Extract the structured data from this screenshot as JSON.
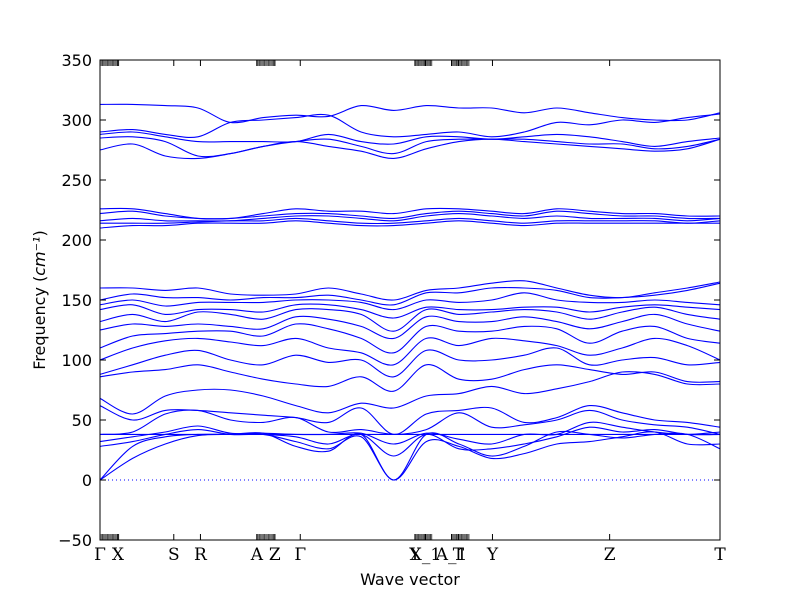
{
  "chart_data": {
    "type": "line",
    "title": "",
    "xlabel": "Wave vector",
    "ylabel": "Frequency",
    "ylabel_unit": "cm⁻¹",
    "ylim": [
      -50,
      350
    ],
    "yticks": [
      -50,
      0,
      50,
      100,
      150,
      200,
      250,
      300,
      350
    ],
    "grid": false,
    "legend": "none",
    "line_color": "#0000ff",
    "zero_line_color": "#0000ff",
    "xlim": [
      0,
      1
    ],
    "kpoints": [
      {
        "label": "Γ",
        "x": 0.0
      },
      {
        "label": "X",
        "x": 0.029
      },
      {
        "label": "S",
        "x": 0.119
      },
      {
        "label": "R",
        "x": 0.162
      },
      {
        "label": "A",
        "x": 0.253
      },
      {
        "label": "Z",
        "x": 0.282
      },
      {
        "label": "Γ",
        "x": 0.323
      },
      {
        "label": "Y",
        "x": 0.508
      },
      {
        "label": "X_1",
        "x": 0.525
      },
      {
        "label": "A_1",
        "x": 0.567
      },
      {
        "label": "T",
        "x": 0.578
      },
      {
        "label": "Y",
        "x": 0.633
      },
      {
        "label": "Z",
        "x": 0.822
      },
      {
        "label": "T",
        "x": 1.0
      }
    ],
    "kpoint_dense_regions": [
      [
        0.0,
        0.03
      ],
      [
        0.253,
        0.282
      ],
      [
        0.508,
        0.535
      ],
      [
        0.567,
        0.595
      ]
    ],
    "series": [
      {
        "values": [
          0,
          28,
          36,
          38,
          38,
          39,
          28,
          24,
          38,
          0,
          38,
          30,
          20,
          28,
          40,
          38,
          35,
          38,
          38,
          26
        ]
      },
      {
        "values": [
          0,
          18,
          30,
          37,
          38,
          38,
          32,
          26,
          36,
          0,
          32,
          28,
          18,
          22,
          30,
          32,
          36,
          40,
          30,
          30
        ]
      },
      {
        "values": [
          28,
          32,
          38,
          42,
          38,
          38,
          36,
          30,
          38,
          20,
          38,
          26,
          26,
          30,
          36,
          44,
          40,
          42,
          38,
          38
        ]
      },
      {
        "values": [
          32,
          36,
          40,
          45,
          39,
          39,
          38,
          38,
          39,
          30,
          39,
          34,
          30,
          38,
          38,
          48,
          44,
          40,
          38,
          40
        ]
      },
      {
        "values": [
          38,
          38,
          38,
          38,
          38,
          38,
          38,
          38,
          38,
          38,
          38,
          38,
          38,
          38,
          38,
          38,
          38,
          38,
          38,
          38
        ]
      },
      {
        "values": [
          38,
          40,
          55,
          58,
          50,
          48,
          52,
          40,
          42,
          38,
          42,
          56,
          44,
          46,
          50,
          58,
          50,
          46,
          44,
          38
        ]
      },
      {
        "values": [
          62,
          50,
          58,
          58,
          56,
          54,
          52,
          48,
          60,
          38,
          55,
          58,
          60,
          48,
          52,
          62,
          56,
          50,
          48,
          44
        ]
      },
      {
        "values": [
          68,
          55,
          70,
          75,
          75,
          70,
          62,
          56,
          64,
          60,
          70,
          72,
          78,
          72,
          76,
          82,
          90,
          88,
          80,
          80
        ]
      },
      {
        "values": [
          86,
          90,
          92,
          96,
          90,
          84,
          80,
          78,
          86,
          74,
          96,
          84,
          84,
          92,
          96,
          92,
          88,
          90,
          82,
          82
        ]
      },
      {
        "values": [
          88,
          96,
          104,
          108,
          100,
          96,
          104,
          98,
          100,
          86,
          108,
          100,
          100,
          104,
          110,
          96,
          100,
          102,
          96,
          98
        ]
      },
      {
        "values": [
          100,
          110,
          116,
          118,
          115,
          112,
          118,
          110,
          106,
          96,
          118,
          112,
          118,
          116,
          112,
          104,
          110,
          118,
          112,
          100
        ]
      },
      {
        "values": [
          110,
          120,
          122,
          124,
          124,
          120,
          130,
          126,
          118,
          106,
          128,
          124,
          124,
          128,
          126,
          114,
          124,
          128,
          118,
          114
        ]
      },
      {
        "values": [
          125,
          130,
          128,
          130,
          128,
          126,
          136,
          134,
          128,
          118,
          136,
          132,
          132,
          136,
          132,
          126,
          132,
          138,
          130,
          124
        ]
      },
      {
        "values": [
          132,
          138,
          132,
          140,
          138,
          134,
          142,
          142,
          138,
          124,
          142,
          138,
          140,
          142,
          140,
          134,
          140,
          144,
          138,
          134
        ]
      },
      {
        "values": [
          142,
          146,
          138,
          142,
          142,
          140,
          146,
          146,
          142,
          135,
          144,
          142,
          142,
          144,
          144,
          140,
          144,
          146,
          144,
          142
        ]
      },
      {
        "values": [
          146,
          150,
          145,
          148,
          148,
          148,
          150,
          150,
          148,
          142,
          150,
          148,
          150,
          156,
          150,
          148,
          148,
          150,
          148,
          146
        ]
      },
      {
        "values": [
          150,
          155,
          152,
          152,
          150,
          152,
          152,
          154,
          150,
          146,
          156,
          156,
          160,
          160,
          158,
          152,
          152,
          154,
          158,
          164
        ]
      },
      {
        "values": [
          160,
          160,
          158,
          160,
          155,
          154,
          155,
          160,
          155,
          150,
          158,
          160,
          164,
          166,
          160,
          154,
          152,
          156,
          160,
          165
        ]
      },
      {
        "values": [
          210,
          212,
          212,
          214,
          214,
          214,
          216,
          214,
          212,
          212,
          214,
          216,
          214,
          212,
          214,
          214,
          214,
          214,
          214,
          214
        ]
      },
      {
        "values": [
          214,
          214,
          214,
          215,
          216,
          216,
          218,
          216,
          214,
          214,
          216,
          218,
          216,
          214,
          216,
          216,
          216,
          216,
          214,
          216
        ]
      },
      {
        "values": [
          216,
          218,
          216,
          216,
          216,
          218,
          220,
          220,
          218,
          216,
          220,
          222,
          220,
          218,
          220,
          218,
          218,
          218,
          216,
          218
        ]
      },
      {
        "values": [
          222,
          224,
          220,
          218,
          218,
          220,
          222,
          222,
          220,
          218,
          222,
          224,
          222,
          220,
          224,
          222,
          220,
          220,
          218,
          218
        ]
      },
      {
        "values": [
          226,
          226,
          222,
          218,
          218,
          222,
          226,
          224,
          224,
          222,
          226,
          226,
          224,
          222,
          226,
          224,
          222,
          222,
          220,
          220
        ]
      },
      {
        "values": [
          275,
          280,
          270,
          268,
          272,
          278,
          282,
          278,
          274,
          268,
          276,
          282,
          284,
          282,
          280,
          278,
          276,
          274,
          276,
          284
        ]
      },
      {
        "values": [
          285,
          286,
          282,
          270,
          272,
          278,
          282,
          284,
          278,
          272,
          282,
          284,
          284,
          284,
          282,
          280,
          280,
          276,
          278,
          284
        ]
      },
      {
        "values": [
          288,
          290,
          286,
          282,
          282,
          282,
          282,
          288,
          282,
          280,
          286,
          286,
          284,
          286,
          288,
          286,
          282,
          278,
          282,
          285
        ]
      },
      {
        "values": [
          290,
          292,
          288,
          286,
          298,
          300,
          302,
          304,
          290,
          286,
          288,
          290,
          286,
          290,
          298,
          296,
          300,
          298,
          302,
          305
        ]
      },
      {
        "values": [
          313,
          313,
          312,
          310,
          298,
          302,
          304,
          303,
          312,
          308,
          312,
          310,
          310,
          306,
          310,
          306,
          302,
          300,
          300,
          306
        ]
      }
    ]
  }
}
